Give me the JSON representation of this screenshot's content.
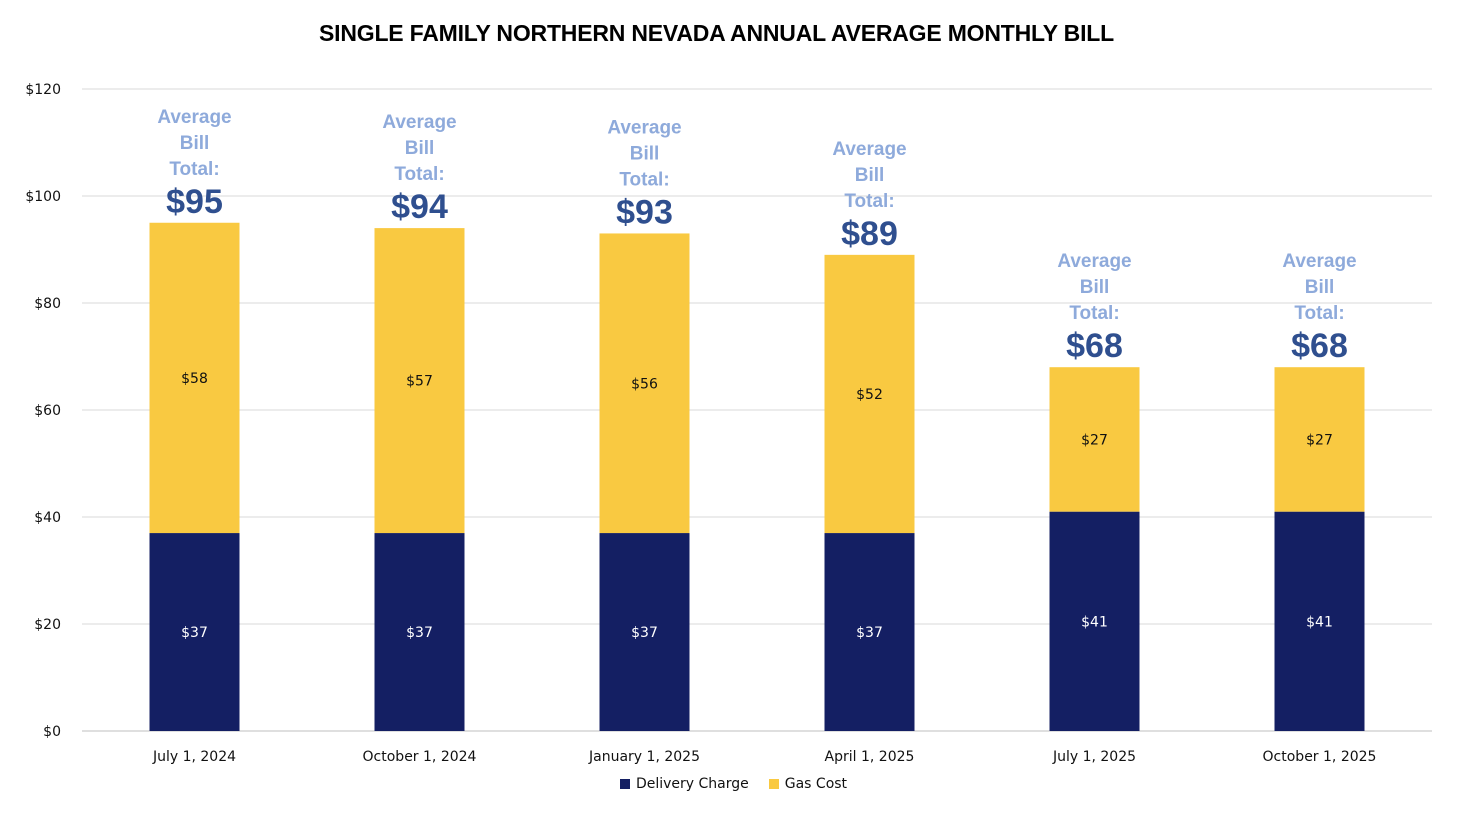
{
  "chart_data": {
    "type": "bar",
    "stacked": true,
    "title": "SINGLE FAMILY NORTHERN NEVADA ANNUAL AVERAGE MONTHLY BILL",
    "categories": [
      "July 1, 2024",
      "October 1, 2024",
      "January 1, 2025",
      "April 1, 2025",
      "July 1, 2025",
      "October 1, 2025"
    ],
    "series": [
      {
        "name": "Delivery Charge",
        "color": "#141f63",
        "values": [
          37,
          37,
          37,
          37,
          41,
          41
        ],
        "labels": [
          "$37",
          "$37",
          "$37",
          "$37",
          "$41",
          "$41"
        ]
      },
      {
        "name": "Gas Cost",
        "color": "#f9c941",
        "values": [
          58,
          57,
          56,
          52,
          27,
          27
        ],
        "labels": [
          "$58",
          "$57",
          "$56",
          "$52",
          "$27",
          "$27"
        ]
      }
    ],
    "annotations": [
      {
        "line1": "Average",
        "line2": "Bill",
        "line3": "Total:",
        "total": "$95"
      },
      {
        "line1": "Average",
        "line2": "Bill",
        "line3": "Total:",
        "total": "$94"
      },
      {
        "line1": "Average",
        "line2": "Bill",
        "line3": "Total:",
        "total": "$93"
      },
      {
        "line1": "Average",
        "line2": "Bill",
        "line3": "Total:",
        "total": "$89"
      },
      {
        "line1": "Average",
        "line2": "Bill",
        "line3": "Total:",
        "total": "$68"
      },
      {
        "line1": "Average",
        "line2": "Bill",
        "line3": "Total:",
        "total": "$68"
      }
    ],
    "ylim": [
      0,
      120
    ],
    "yticks": [
      0,
      20,
      40,
      60,
      80,
      100,
      120
    ],
    "ytick_labels": [
      "$0",
      "$20",
      "$40",
      "$60",
      "$80",
      "$100",
      "$120"
    ],
    "grid": true,
    "legend_position": "bottom-center",
    "xlabel": "",
    "ylabel": ""
  }
}
